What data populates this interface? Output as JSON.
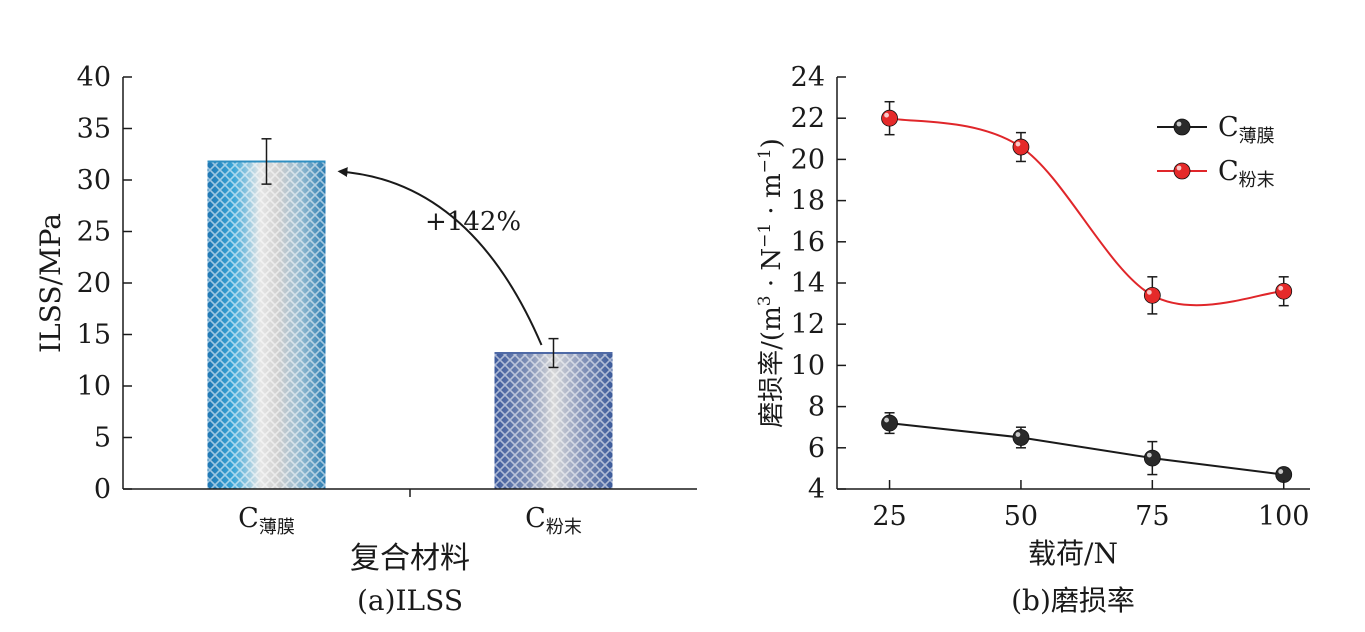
{
  "chart_data": [
    {
      "type": "bar",
      "caption": "(a)ILSS",
      "xlabel": "复合材料",
      "ylabel": "ILSS/MPa",
      "ylim": [
        0,
        40
      ],
      "yticks": [
        0,
        5,
        10,
        15,
        20,
        25,
        30,
        35,
        40
      ],
      "categories": [
        {
          "main": "C",
          "sub": "薄膜"
        },
        {
          "main": "C",
          "sub": "粉末"
        }
      ],
      "values": [
        31.8,
        13.2
      ],
      "errors": [
        2.2,
        1.4
      ],
      "annotation": {
        "text": "+142%",
        "from": 1,
        "to": 0
      },
      "bar_colors": [
        "#2f8fc2",
        "#4f6aa6"
      ],
      "grid": false
    },
    {
      "type": "line",
      "caption": "(b)磨损率",
      "xlabel": "载荷/N",
      "ylabel": {
        "prefix": "磨损率/(m",
        "sup1": "3",
        "mid1": " · N",
        "sup2": "−1",
        "mid2": " · m",
        "sup3": "−1",
        "suffix": ")"
      },
      "x": [
        25,
        50,
        75,
        100
      ],
      "xticks": [
        25,
        50,
        75,
        100
      ],
      "ylim": [
        4,
        24
      ],
      "yticks": [
        4,
        6,
        8,
        10,
        12,
        14,
        16,
        18,
        20,
        22,
        24
      ],
      "legend_position": "top-right",
      "grid": false,
      "series": [
        {
          "name": {
            "main": "C",
            "sub": "薄膜"
          },
          "values": [
            7.2,
            6.5,
            5.5,
            4.7
          ],
          "errors": [
            0.5,
            0.5,
            0.8,
            0.3
          ],
          "color": "#1a1a1a",
          "marker": "#2a2a2a",
          "curve": "linear"
        },
        {
          "name": {
            "main": "C",
            "sub": "粉末"
          },
          "values": [
            22.0,
            20.6,
            13.4,
            13.6
          ],
          "errors": [
            0.8,
            0.7,
            0.9,
            0.7
          ],
          "color": "#e0262a",
          "marker": "#e52a2a",
          "curve": "spline"
        }
      ]
    }
  ]
}
